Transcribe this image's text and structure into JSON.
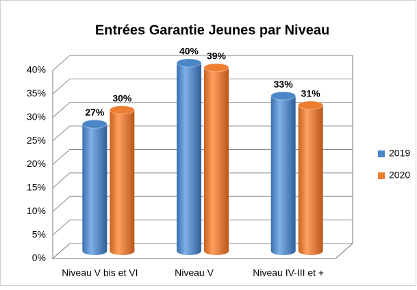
{
  "chart_data": {
    "type": "bar",
    "title": "Entrées Garantie Jeunes par Niveau",
    "categories": [
      "Niveau V bis et VI",
      "Niveau V",
      "Niveau IV-III et +"
    ],
    "series": [
      {
        "name": "2019",
        "color": "#4a86c8",
        "values": [
          27,
          40,
          33
        ],
        "value_labels": [
          "27%",
          "40%",
          "33%"
        ]
      },
      {
        "name": "2020",
        "color": "#ed7d31",
        "values": [
          30,
          39,
          31
        ],
        "value_labels": [
          "30%",
          "39%",
          "31%"
        ]
      }
    ],
    "ylim": [
      0,
      40
    ],
    "yticks": [
      {
        "value": 0,
        "label": "0%"
      },
      {
        "value": 5,
        "label": "5%"
      },
      {
        "value": 10,
        "label": "10%"
      },
      {
        "value": 15,
        "label": "15%"
      },
      {
        "value": 20,
        "label": "20%"
      },
      {
        "value": 25,
        "label": "25%"
      },
      {
        "value": 30,
        "label": "30%"
      },
      {
        "value": 35,
        "label": "35%"
      },
      {
        "value": 40,
        "label": "40%"
      }
    ],
    "grid": true,
    "legend": "right"
  }
}
